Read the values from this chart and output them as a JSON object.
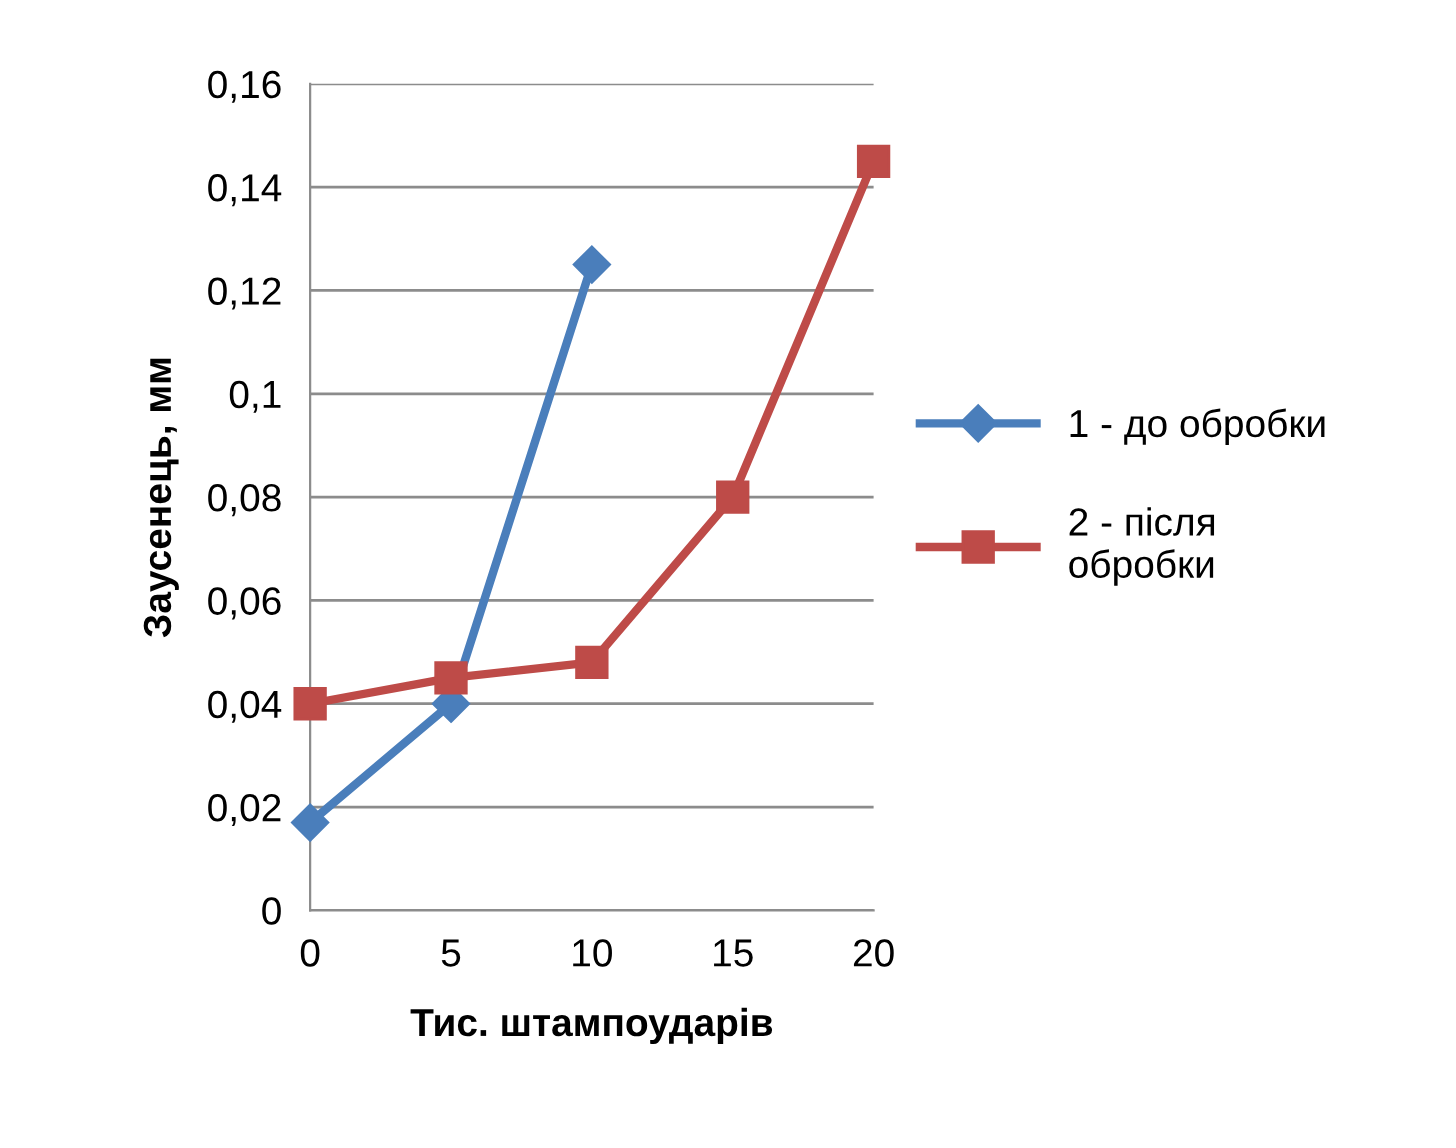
{
  "chart_data": {
    "type": "line",
    "xlabel": "Тис. штампоударів",
    "ylabel": "Заусенець, мм",
    "xlim": [
      0,
      20
    ],
    "xticks": [
      0,
      5,
      10,
      15,
      20
    ],
    "ylim": [
      0,
      0.16
    ],
    "yticks": [
      0,
      {
        "value": 0.02,
        "label": "0,02"
      },
      {
        "value": 0.04,
        "label": "0,04"
      },
      {
        "value": 0.06,
        "label": "0,06"
      },
      {
        "value": 0.08,
        "label": "0,08"
      },
      {
        "value": 0.1,
        "label": "0,1"
      },
      {
        "value": 0.12,
        "label": "0,12"
      },
      {
        "value": 0.14,
        "label": "0,14"
      },
      {
        "value": 0.16,
        "label": "0,16"
      }
    ],
    "grid": "y",
    "legend": "right",
    "series": [
      {
        "name": "1 - до обробки",
        "color": "#4a7ebb",
        "marker": "diamond",
        "x": [
          0,
          5,
          10
        ],
        "values": [
          0.017,
          0.04,
          0.125
        ]
      },
      {
        "name": "2 - після\nобробки",
        "color": "#be4b48",
        "marker": "square",
        "x": [
          0,
          5,
          10,
          15,
          20
        ],
        "values": [
          0.04,
          0.045,
          0.048,
          0.08,
          0.145
        ]
      }
    ]
  }
}
